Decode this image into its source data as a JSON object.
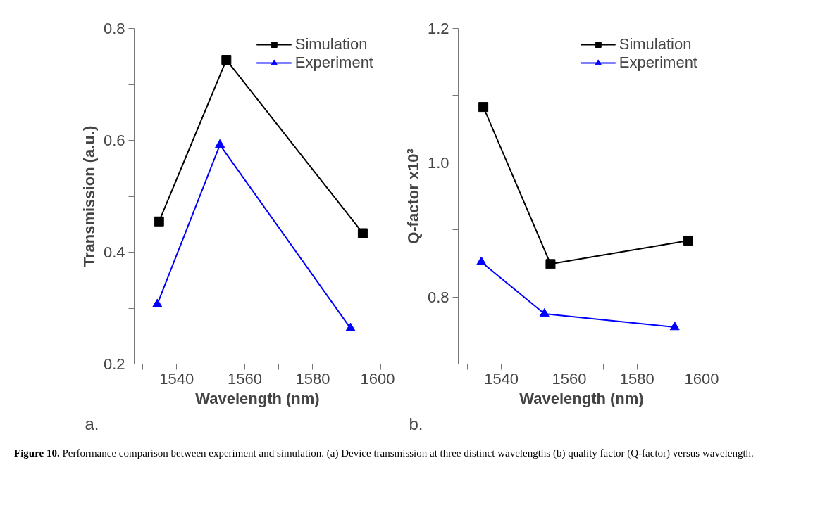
{
  "chart_data": [
    {
      "type": "line",
      "xlabel": "Wavelength (nm)",
      "ylabel": "Transmission (a.u.)",
      "legend": "top right",
      "grid": false,
      "xlim": [
        1527.5,
        1600
      ],
      "xticks": [
        {
          "value": 1530,
          "label": null
        },
        1540,
        {
          "value": 1550,
          "label": null
        },
        1560,
        {
          "value": 1570,
          "label": null
        },
        1580,
        {
          "value": 1590,
          "label": null
        },
        1600
      ],
      "ylim": [
        0.2,
        0.8
      ],
      "yticks": [
        0.2,
        {
          "value": 0.3,
          "label": null
        },
        0.4,
        {
          "value": 0.5,
          "label": null
        },
        0.6,
        {
          "value": 0.7,
          "label": null
        },
        0.8
      ],
      "series": [
        {
          "name": "Simulation",
          "color": "#000000",
          "marker": "square",
          "x": [
            1534.8,
            1554.6,
            1594.7
          ],
          "values": [
            0.455,
            0.744,
            0.434
          ]
        },
        {
          "name": "Experiment",
          "color": "#0000ff",
          "marker": "triangle",
          "x": [
            1534.3,
            1552.7,
            1591.1
          ],
          "values": [
            0.307,
            0.592,
            0.264
          ]
        }
      ],
      "annotations": [
        "a.",
        "Figure 10.",
        "Performance comparison between experiment and simulation. (a) Device transmission at three distinct wavelengths (b) quality factor (Q-factor) versus wavelength."
      ]
    },
    {
      "type": "line",
      "xlabel": "Wavelength (nm)",
      "ylabel": "Q-factor x10³",
      "legend": "top right",
      "grid": false,
      "xlim": [
        1527.3,
        1600
      ],
      "xticks": [
        {
          "value": 1530,
          "label": null
        },
        1540,
        {
          "value": 1550,
          "label": null
        },
        1560,
        {
          "value": 1570,
          "label": null
        },
        1580,
        {
          "value": 1590,
          "label": null
        },
        1600
      ],
      "ylim": [
        0.7,
        1.2
      ],
      "yticks": [
        0.8,
        {
          "value": 0.9,
          "label": null
        },
        {
          "value": 1.0,
          "label": "1.0"
        },
        {
          "value": 1.1,
          "label": null
        },
        1.2
      ],
      "series": [
        {
          "name": "Simulation",
          "color": "#000000",
          "marker": "square",
          "x": [
            1534.7,
            1554.5,
            1595.1
          ],
          "values": [
            1.083,
            0.849,
            0.884
          ]
        },
        {
          "name": "Experiment",
          "color": "#0000ff",
          "marker": "triangle",
          "x": [
            1534.1,
            1552.7,
            1591.1
          ],
          "values": [
            0.852,
            0.775,
            0.755
          ]
        }
      ],
      "annotations": [
        "b."
      ]
    }
  ]
}
